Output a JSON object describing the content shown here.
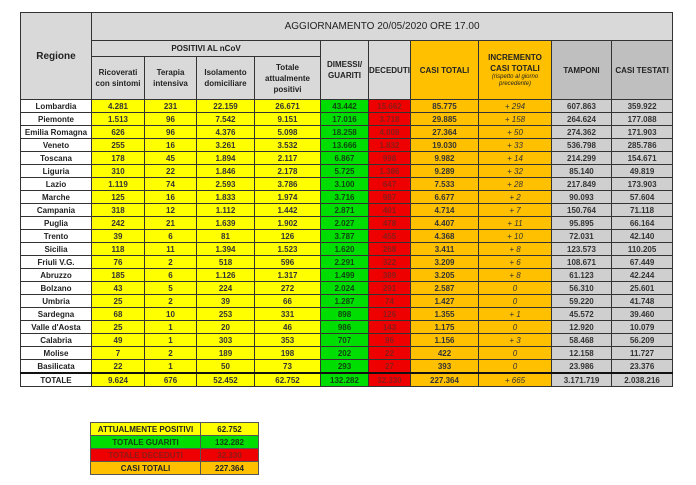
{
  "header": {
    "region_label": "Regione",
    "update_title": "AGGIORNAMENTO 20/05/2020 ORE 17.00",
    "positive_group": "POSITIVI AL nCoV",
    "columns": {
      "ricoverati": "Ricoverati con sintomi",
      "terapia": "Terapia intensiva",
      "isolamento": "Isolamento domiciliare",
      "totale_positivi": "Totale attualmente positivi",
      "dimessi": "DIMESSI/ GUARITI",
      "deceduti": "DECEDUTI",
      "casi_totali": "CASI TOTALI",
      "incremento": "INCREMENTO CASI TOTALI",
      "incremento_note": "(rispetto al giorno precedente)",
      "tamponi": "TAMPONI",
      "casi_testati": "CASI TESTATI"
    }
  },
  "colors": {
    "positivi": "#ffff00",
    "guariti": "#00dd00",
    "deceduti": "#ee0000",
    "casi": "#ffc000",
    "tamponi": "#cfcfcf"
  },
  "rows": [
    [
      "Lombardia",
      "4.281",
      "231",
      "22.159",
      "26.671",
      "43.442",
      "15.662",
      "85.775",
      "+ 294",
      "607.863",
      "359.922"
    ],
    [
      "Piemonte",
      "1.513",
      "96",
      "7.542",
      "9.151",
      "17.016",
      "3.718",
      "29.885",
      "+ 158",
      "264.624",
      "177.088"
    ],
    [
      "Emilia Romagna",
      "626",
      "96",
      "4.376",
      "5.098",
      "18.258",
      "4.008",
      "27.364",
      "+ 50",
      "274.362",
      "171.903"
    ],
    [
      "Veneto",
      "255",
      "16",
      "3.261",
      "3.532",
      "13.666",
      "1.832",
      "19.030",
      "+ 33",
      "536.798",
      "285.786"
    ],
    [
      "Toscana",
      "178",
      "45",
      "1.894",
      "2.117",
      "6.867",
      "998",
      "9.982",
      "+ 14",
      "214.299",
      "154.671"
    ],
    [
      "Liguria",
      "310",
      "22",
      "1.846",
      "2.178",
      "5.725",
      "1.386",
      "9.289",
      "+ 32",
      "85.140",
      "49.819"
    ],
    [
      "Lazio",
      "1.119",
      "74",
      "2.593",
      "3.786",
      "3.100",
      "647",
      "7.533",
      "+ 28",
      "217.849",
      "173.903"
    ],
    [
      "Marche",
      "125",
      "16",
      "1.833",
      "1.974",
      "3.716",
      "987",
      "6.677",
      "+ 2",
      "90.093",
      "57.604"
    ],
    [
      "Campania",
      "318",
      "12",
      "1.112",
      "1.442",
      "2.871",
      "401",
      "4.714",
      "+ 7",
      "150.764",
      "71.118"
    ],
    [
      "Puglia",
      "242",
      "21",
      "1.639",
      "1.902",
      "2.027",
      "478",
      "4.407",
      "+ 11",
      "95.895",
      "66.164"
    ],
    [
      "Trento",
      "39",
      "6",
      "81",
      "126",
      "3.787",
      "455",
      "4.368",
      "+ 10",
      "72.031",
      "42.140"
    ],
    [
      "Sicilia",
      "118",
      "11",
      "1.394",
      "1.523",
      "1.620",
      "268",
      "3.411",
      "+ 8",
      "123.573",
      "110.205"
    ],
    [
      "Friuli V.G.",
      "76",
      "2",
      "518",
      "596",
      "2.291",
      "322",
      "3.209",
      "+ 6",
      "108.671",
      "67.449"
    ],
    [
      "Abruzzo",
      "185",
      "6",
      "1.126",
      "1.317",
      "1.499",
      "389",
      "3.205",
      "+ 8",
      "61.123",
      "42.244"
    ],
    [
      "Bolzano",
      "43",
      "5",
      "224",
      "272",
      "2.024",
      "291",
      "2.587",
      "0",
      "56.310",
      "25.601"
    ],
    [
      "Umbria",
      "25",
      "2",
      "39",
      "66",
      "1.287",
      "74",
      "1.427",
      "0",
      "59.220",
      "41.748"
    ],
    [
      "Sardegna",
      "68",
      "10",
      "253",
      "331",
      "898",
      "126",
      "1.355",
      "+ 1",
      "45.572",
      "39.460"
    ],
    [
      "Valle d'Aosta",
      "25",
      "1",
      "20",
      "46",
      "986",
      "143",
      "1.175",
      "0",
      "12.920",
      "10.079"
    ],
    [
      "Calabria",
      "49",
      "1",
      "303",
      "353",
      "707",
      "96",
      "1.156",
      "+ 3",
      "58.468",
      "56.209"
    ],
    [
      "Molise",
      "7",
      "2",
      "189",
      "198",
      "202",
      "22",
      "422",
      "0",
      "12.158",
      "11.727"
    ],
    [
      "Basilicata",
      "22",
      "1",
      "50",
      "73",
      "293",
      "27",
      "393",
      "0",
      "23.986",
      "23.376"
    ]
  ],
  "total": [
    "TOTALE",
    "9.624",
    "676",
    "52.452",
    "62.752",
    "132.282",
    "32.330",
    "227.364",
    "+ 665",
    "3.171.719",
    "2.038.216"
  ],
  "summary": [
    {
      "label": "ATTUALMENTE POSITIVI",
      "value": "62.752",
      "bg": "#ffff00",
      "fg": "#222"
    },
    {
      "label": "TOTALE GUARITI",
      "value": "132.282",
      "bg": "#00dd00",
      "fg": "#114411"
    },
    {
      "label": "TOTALE DECEDUTI",
      "value": "32.330",
      "bg": "#ee0000",
      "fg": "#8b1a1a"
    },
    {
      "label": "CASI TOTALI",
      "value": "227.364",
      "bg": "#ffc000",
      "fg": "#222"
    }
  ]
}
